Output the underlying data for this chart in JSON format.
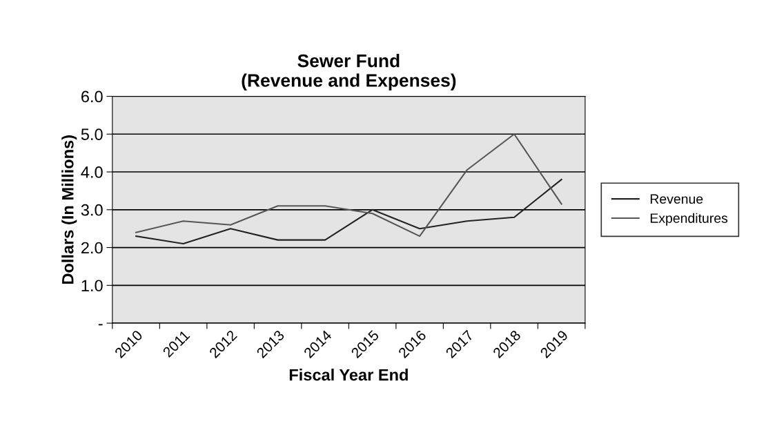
{
  "chart_data": {
    "type": "line",
    "title": "Sewer Fund\n(Revenue and Expenses)",
    "xlabel": "Fiscal Year End",
    "ylabel": "Dollars (In Millions)",
    "categories": [
      "2010",
      "2011",
      "2012",
      "2013",
      "2014",
      "2015",
      "2016",
      "2017",
      "2018",
      "2019"
    ],
    "series": [
      {
        "name": "Revenue",
        "color": "#222222",
        "values": [
          2.3,
          2.1,
          2.5,
          2.2,
          2.2,
          3.0,
          2.5,
          2.7,
          2.8,
          3.8
        ]
      },
      {
        "name": "Expenditures",
        "color": "#555555",
        "values": [
          2.4,
          2.7,
          2.6,
          3.1,
          3.1,
          2.9,
          2.3,
          4.05,
          5.0,
          3.15
        ]
      }
    ],
    "ylim": [
      0,
      6
    ],
    "yticks": [
      {
        "value": 0,
        "label": "-"
      },
      {
        "value": 1,
        "label": "1.0"
      },
      {
        "value": 2,
        "label": "2.0"
      },
      {
        "value": 3,
        "label": "3.0"
      },
      {
        "value": 4,
        "label": "4.0"
      },
      {
        "value": 5,
        "label": "5.0"
      },
      {
        "value": 6,
        "label": "6.0"
      }
    ],
    "grid": "y",
    "legend": "right",
    "marker": "none",
    "line_style": "solid"
  }
}
